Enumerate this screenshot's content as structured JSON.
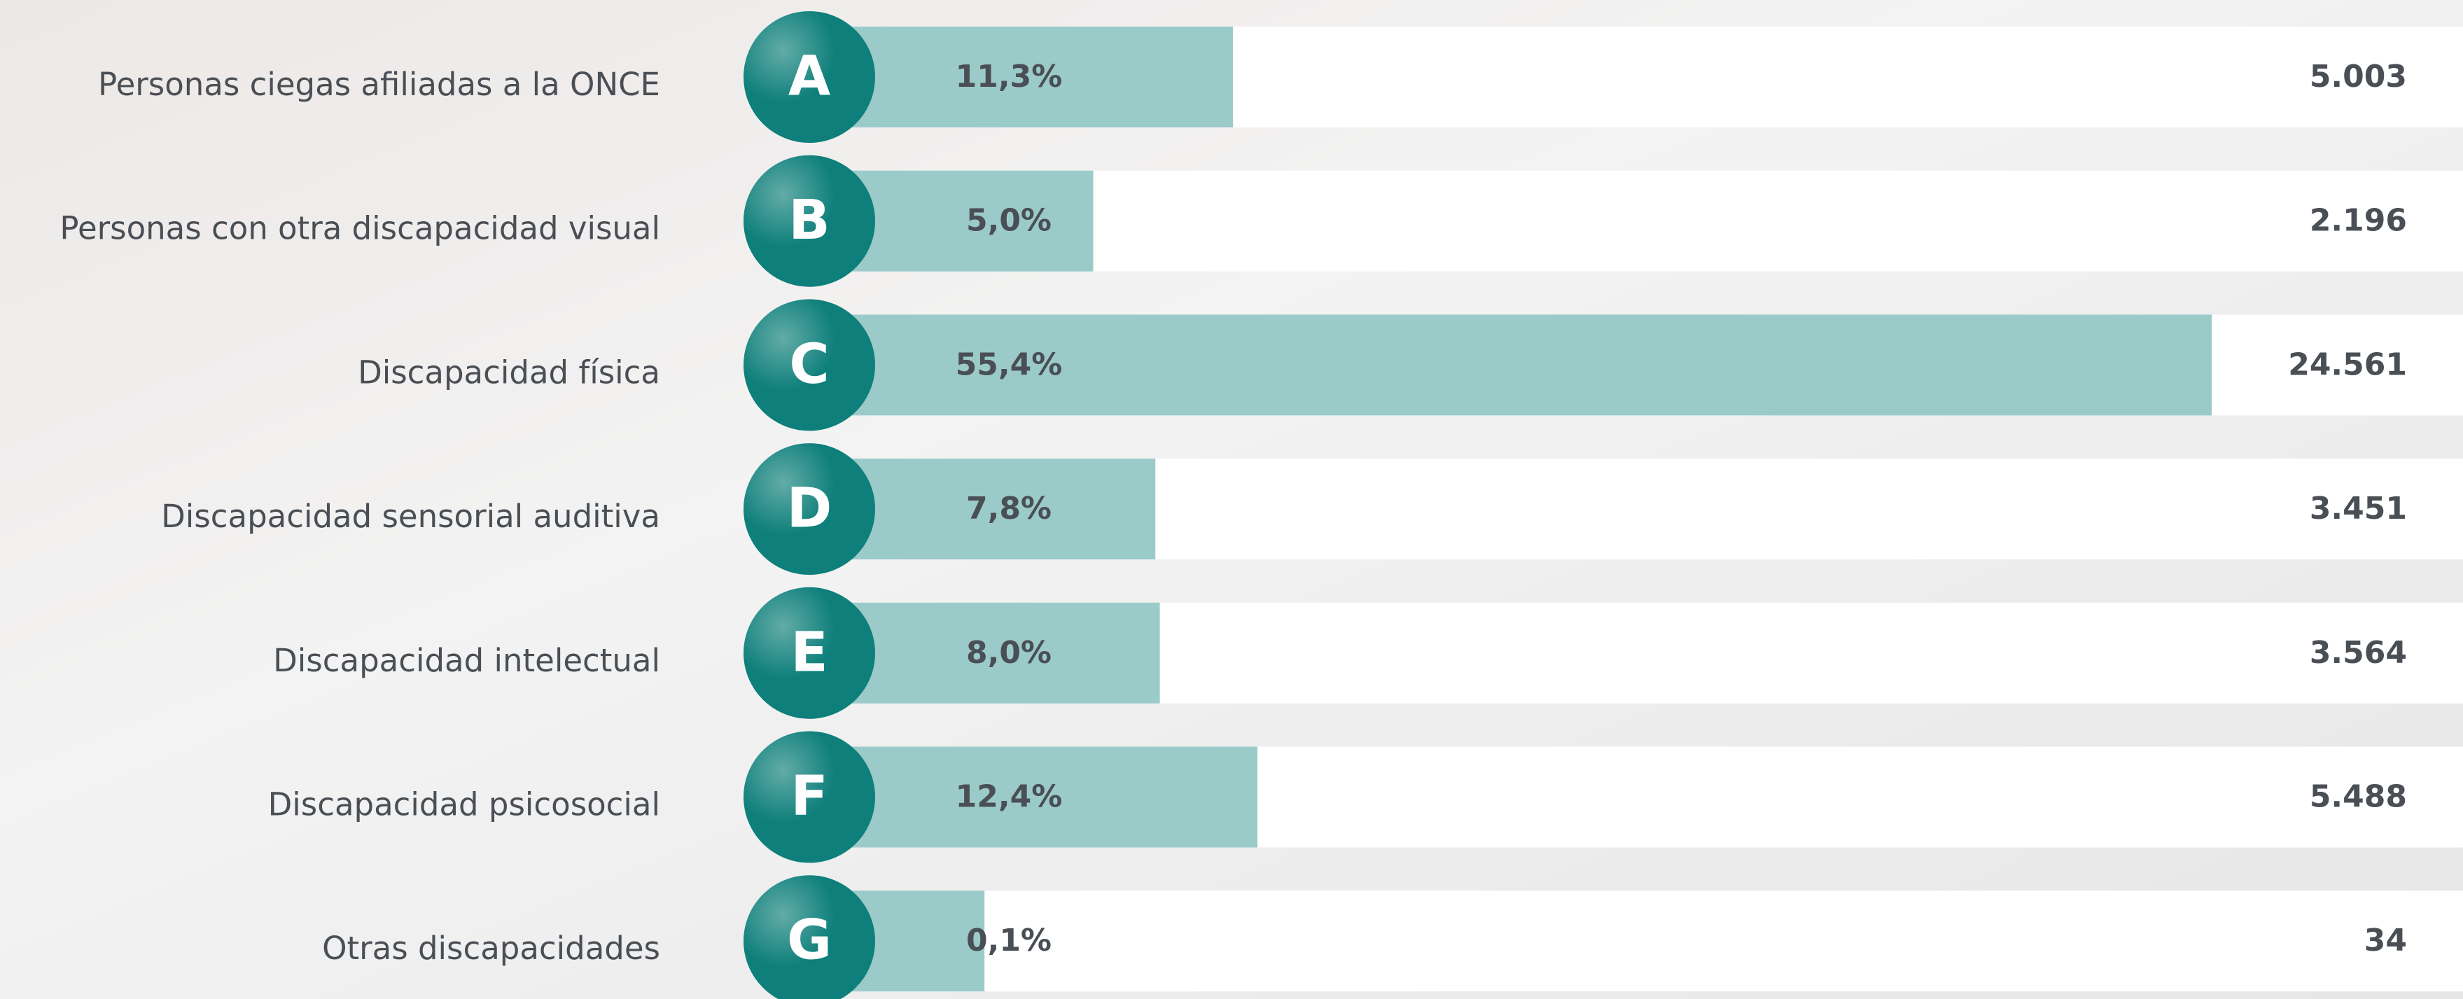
{
  "chart_data": {
    "type": "bar",
    "categories": [
      "Personas ciegas afiliadas a la ONCE",
      "Personas con otra discapacidad visual",
      "Discapacidad física",
      "Discapacidad sensorial auditiva",
      "Discapacidad intelectual",
      "Discapacidad psicosocial",
      "Otras discapacidades"
    ],
    "letters": [
      "A",
      "B",
      "C",
      "D",
      "E",
      "F",
      "G"
    ],
    "values": [
      11.3,
      5.0,
      55.4,
      7.8,
      8.0,
      12.4,
      0.1
    ],
    "value_labels": [
      "11,3%",
      "5,0%",
      "55,4%",
      "7,8%",
      "8,0%",
      "12,4%",
      "0,1%"
    ],
    "counts": [
      5003,
      2196,
      24561,
      3451,
      3564,
      5488,
      34
    ],
    "count_labels": [
      "5.003",
      "2.196",
      "24.561",
      "3.451",
      "3.564",
      "5.488",
      "34"
    ],
    "color": "#9bcbc9",
    "circle_color": "#0e7f7a"
  }
}
